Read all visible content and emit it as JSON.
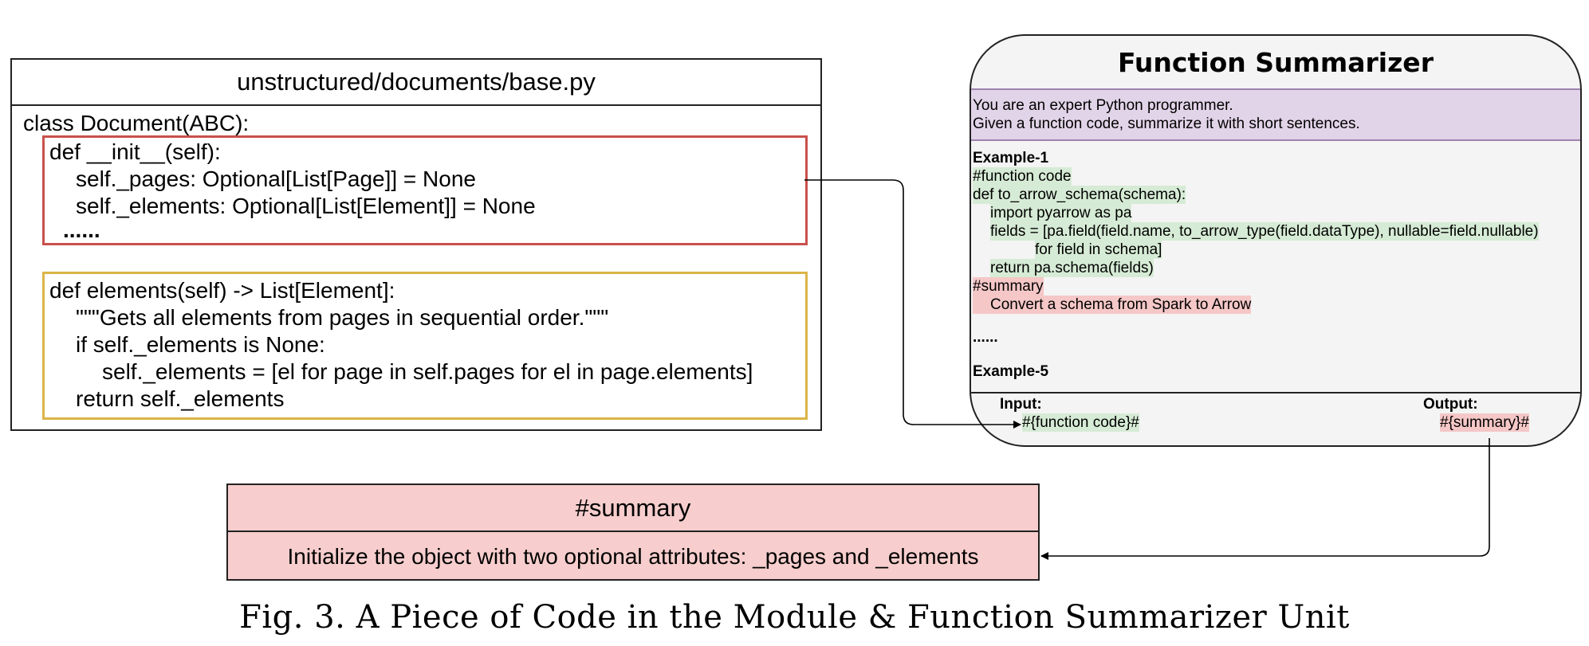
{
  "code_file": {
    "title": "unstructured/documents/base.py",
    "lines": [
      "class Document(ABC):",
      "def __init__(self):",
      "self._pages: Optional[List[Page]] = None",
      "self._elements: Optional[List[Element]] = None",
      "......",
      "def elements(self) -> List[Element]:",
      "\"\"\"Gets all elements from pages in sequential order.\"\"\"",
      "if self._elements is None:",
      "self._elements = [el for page in self.pages for el in page.elements]",
      "return self._elements"
    ],
    "init_box_color": "#c9504c",
    "elements_box_color": "#dcb447"
  },
  "summarizer": {
    "title": "Function Summarizer",
    "system_lines": [
      "You are an expert Python programmer.",
      "Given a function code, summarize it with short sentences."
    ],
    "example1_label": "Example-1",
    "example_lines": [
      "#function code",
      "def to_arrow_schema(schema):",
      "import pyarrow as pa",
      "fields = [pa.field(field.name, to_arrow_type(field.dataType), nullable=field.nullable)",
      "for field in schema]",
      "return pa.schema(fields)",
      "#summary",
      "Convert a schema from Spark to Arrow"
    ],
    "ellipsis": "......",
    "example5_label": "Example-5",
    "input_label": "Input:",
    "input_value": "#{function code}#",
    "output_label": "Output:",
    "output_value": "#{summary}#",
    "system_color": "#e2d4e8",
    "code_highlight": "#d6ebd5",
    "summary_highlight": "#f5c7c7"
  },
  "result": {
    "header": "#summary",
    "text": "Initialize the object with two optional attributes: _pages and _elements",
    "background": "#f7cecd"
  },
  "caption": "Fig. 3.  A Piece of Code in the Module & Function Summarizer Unit"
}
